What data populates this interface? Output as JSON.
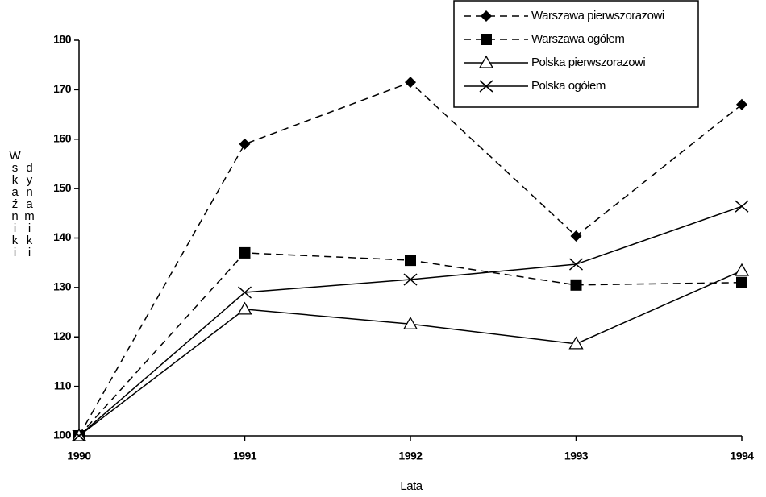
{
  "chart_data": {
    "type": "line",
    "x_label": "Lata",
    "y_label": [
      "Wskaźniki",
      "dynamiki"
    ],
    "x": [
      1990,
      1991,
      1992,
      1993,
      1994
    ],
    "xlim": [
      1990,
      1994
    ],
    "xticks": [
      1990,
      1991,
      1992,
      1993,
      1994
    ],
    "ylim": [
      100,
      180
    ],
    "yticks": [
      100,
      110,
      120,
      130,
      140,
      150,
      160,
      170,
      180
    ],
    "legend": "top-right",
    "series": [
      {
        "name": "Warszawa pierwszorazowi",
        "color": "#000000",
        "line_style": "dashed",
        "marker": "diamond",
        "values": [
          100,
          159,
          171.5,
          140.4,
          167
        ]
      },
      {
        "name": "Warszawa ogółem",
        "color": "#000000",
        "line_style": "dashed",
        "marker": "square",
        "values": [
          100,
          137,
          135.5,
          130.5,
          131
        ]
      },
      {
        "name": "Polska pierwszorazowi",
        "color": "#000000",
        "line_style": "solid",
        "marker": "triangle",
        "values": [
          100,
          125.6,
          122.6,
          118.6,
          133.4
        ]
      },
      {
        "name": "Polska ogółem",
        "color": "#000000",
        "line_style": "solid",
        "marker": "x",
        "values": [
          100,
          129,
          131.6,
          134.7,
          146.4
        ]
      }
    ]
  }
}
